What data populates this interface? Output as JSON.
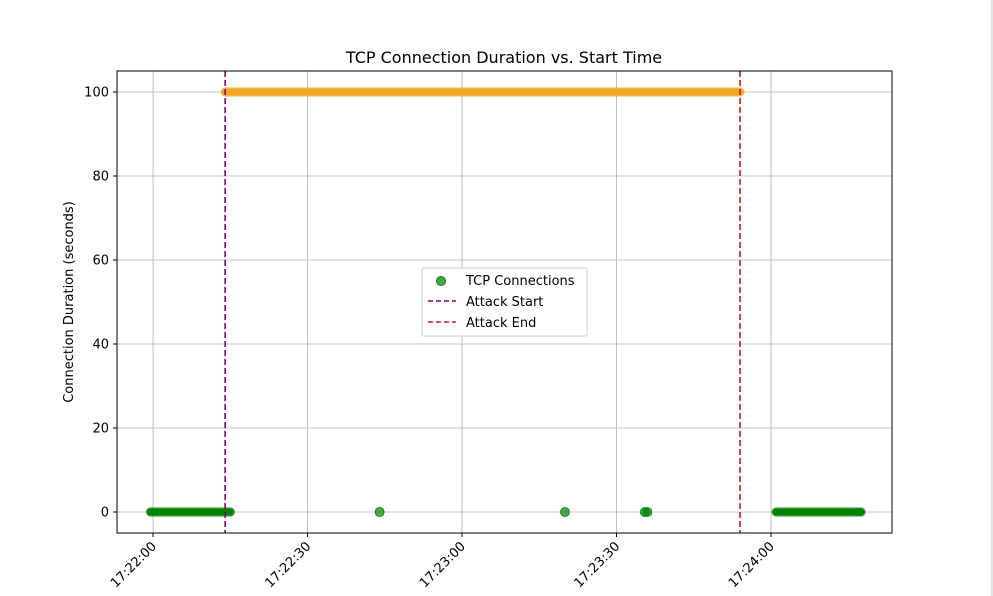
{
  "chart_data": {
    "type": "scatter",
    "title": "TCP Connection Duration vs. Start Time",
    "xlabel": "",
    "ylabel": "Connection Duration (seconds)",
    "x_tick_labels": [
      "17:22:00",
      "17:22:30",
      "17:23:00",
      "17:23:30",
      "17:24:00"
    ],
    "x_tick_seconds": [
      0,
      30,
      60,
      90,
      120
    ],
    "y_ticks": [
      0,
      20,
      40,
      60,
      80,
      100
    ],
    "xlim_seconds": [
      -7,
      143.5
    ],
    "ylim": [
      -5,
      105
    ],
    "grid": true,
    "legend_position": "center",
    "series": [
      {
        "name": "TCP Connections",
        "color": "#008000",
        "segments": [
          {
            "start_seconds": -0.5,
            "end_seconds": 15,
            "y": 0
          },
          {
            "start_seconds": 121,
            "end_seconds": 137.5,
            "y": 0
          }
        ],
        "points": [
          {
            "x_seconds": 44,
            "y": 0
          },
          {
            "x_seconds": 80,
            "y": 0
          },
          {
            "x_seconds": 95.5,
            "y": 0
          },
          {
            "x_seconds": 96,
            "y": 0
          }
        ]
      },
      {
        "color": "#f5a623",
        "segments": [
          {
            "start_seconds": 14,
            "end_seconds": 114,
            "y": 100
          }
        ],
        "points": []
      }
    ],
    "vlines": [
      {
        "name": "Attack Start",
        "x_seconds": 14,
        "color": "#800080",
        "style": "dashed"
      },
      {
        "name": "Attack End",
        "x_seconds": 114,
        "color": "#b22222",
        "style": "dashed"
      }
    ]
  }
}
